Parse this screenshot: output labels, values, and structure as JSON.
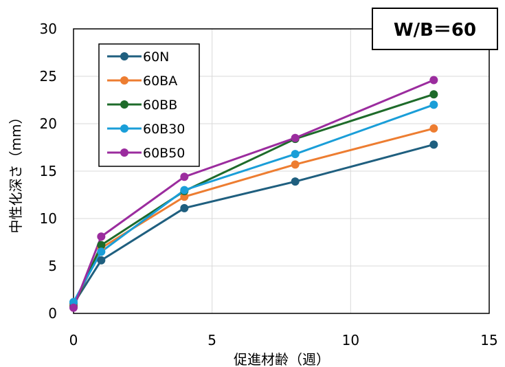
{
  "chart_data": {
    "type": "line",
    "title": "W/B＝60",
    "xlabel": "促進材齢（週）",
    "ylabel": "中性化深さ（mm）",
    "xlim": [
      0,
      15
    ],
    "ylim": [
      0,
      30
    ],
    "xticks": [
      0,
      5,
      10,
      15
    ],
    "yticks": [
      0,
      5,
      10,
      15,
      20,
      25,
      30
    ],
    "grid": true,
    "legend_position": "top-left",
    "x": [
      0,
      1,
      4,
      8,
      13
    ],
    "series": [
      {
        "name": "60N",
        "color": "#1f5f7f",
        "values": [
          1.0,
          5.6,
          11.1,
          13.9,
          17.8
        ]
      },
      {
        "name": "60BA",
        "color": "#ed7d31",
        "values": [
          0.8,
          6.9,
          12.3,
          15.7,
          19.5
        ]
      },
      {
        "name": "60BB",
        "color": "#1e6b2a",
        "values": [
          0.7,
          7.2,
          12.9,
          18.4,
          23.1
        ]
      },
      {
        "name": "60B30",
        "color": "#1a9ed8",
        "values": [
          1.2,
          6.5,
          13.0,
          16.8,
          22.0
        ]
      },
      {
        "name": "60B50",
        "color": "#9b2c9e",
        "values": [
          0.6,
          8.1,
          14.4,
          18.5,
          24.6
        ]
      }
    ]
  }
}
